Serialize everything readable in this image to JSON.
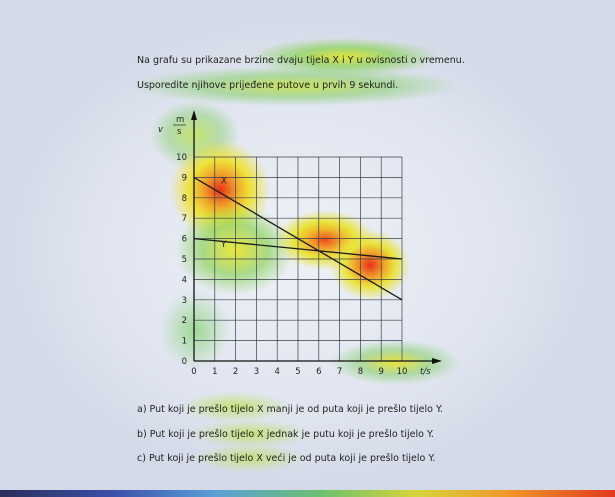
{
  "question": {
    "prompt_line1": "Na grafu su prikazane brzine dvaju tijela X i Y u ovisnosti o vremenu.",
    "prompt_line2": "Usporedite njihove prijeđene putove u prvih 9 sekundi."
  },
  "chart_data": {
    "type": "line",
    "xlabel": "t/s",
    "ylabel": "v / (m/s)",
    "ylabel_top": "v",
    "ylabel_num": "m",
    "ylabel_den": "s",
    "xlim": [
      0,
      10
    ],
    "ylim": [
      0,
      10
    ],
    "x_ticks": [
      "0",
      "1",
      "2",
      "3",
      "4",
      "5",
      "6",
      "7",
      "8",
      "9",
      "10"
    ],
    "y_ticks": [
      "0",
      "1",
      "2",
      "3",
      "4",
      "5",
      "6",
      "7",
      "8",
      "9",
      "10"
    ],
    "grid": true,
    "grid_x_range": [
      0,
      10
    ],
    "grid_y_range": [
      0,
      10
    ],
    "series": [
      {
        "name": "X",
        "x": [
          0,
          10
        ],
        "y": [
          9,
          3
        ]
      },
      {
        "name": "Y",
        "x": [
          0,
          10
        ],
        "y": [
          6,
          5
        ]
      }
    ],
    "annotations": [
      {
        "text": "X",
        "x": 1.3,
        "y": 8.7
      },
      {
        "text": "Y",
        "x": 1.3,
        "y": 5.6
      }
    ]
  },
  "answers": [
    {
      "key": "a",
      "text": "a) Put koji je prešlo tijelo X manji je od puta koji je prešlo tijelo Y."
    },
    {
      "key": "b",
      "text": "b) Put koji je prešlo tijelo X jednak je putu koji je prešlo tijelo Y."
    },
    {
      "key": "c",
      "text": "c) Put koji je prešlo tijelo X veći je od puta koji je prešlo tijelo Y."
    }
  ],
  "colors": {
    "heat_hot": "#e8301a",
    "heat_warm": "#f2e53a",
    "heat_cool": "#7fd35a"
  }
}
